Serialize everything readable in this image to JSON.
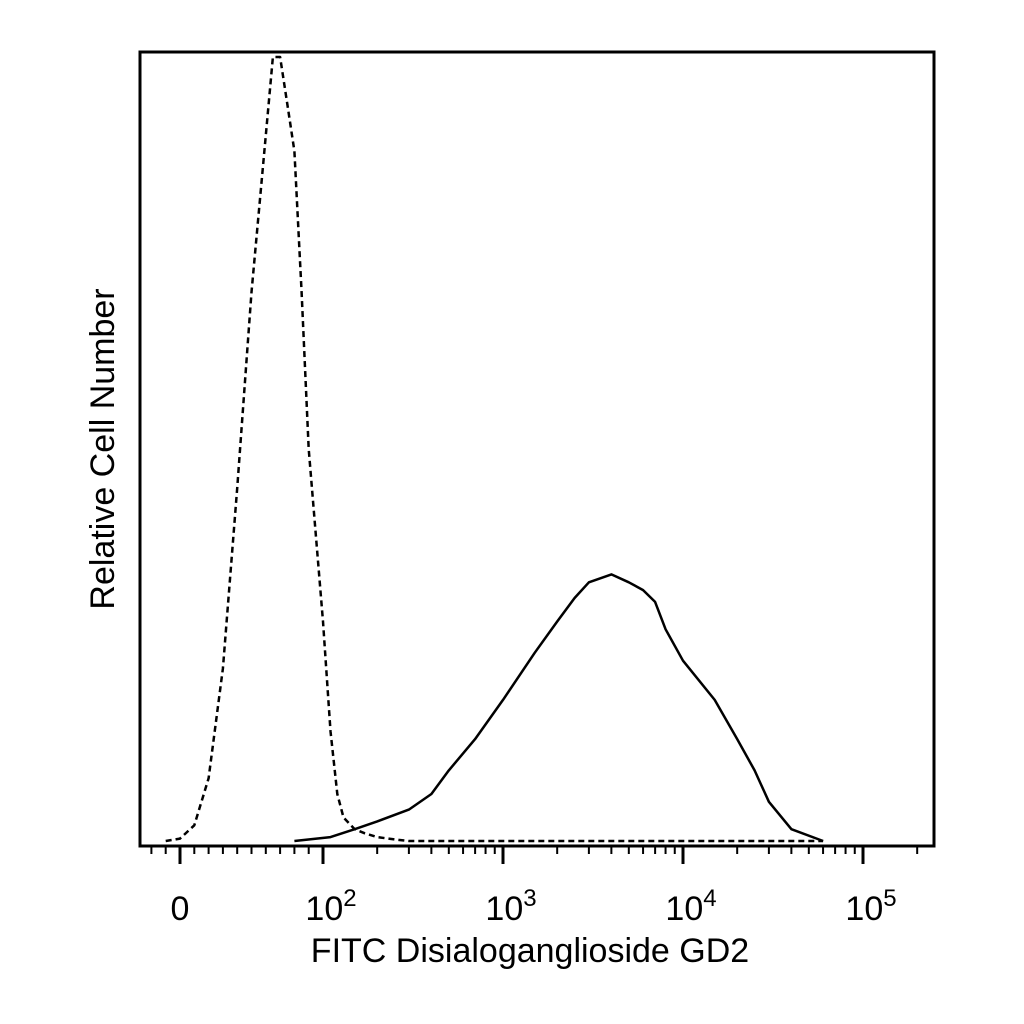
{
  "chart_data": {
    "type": "line",
    "title": "",
    "xlabel": "FITC Disialoganglioside GD2",
    "ylabel": "Relative Cell Number",
    "x_scale": "biexponential",
    "x_ticks": [
      {
        "value": 0,
        "base": "0",
        "exp": ""
      },
      {
        "value": 100,
        "base": "10",
        "exp": "2"
      },
      {
        "value": 1000,
        "base": "10",
        "exp": "3"
      },
      {
        "value": 10000,
        "base": "10",
        "exp": "4"
      },
      {
        "value": 100000,
        "base": "10",
        "exp": "5"
      }
    ],
    "ylim": [
      0,
      100
    ],
    "grid": false,
    "legend": "none",
    "series": [
      {
        "style": "dashed",
        "color": "#000000",
        "x": [
          -10,
          0,
          10,
          20,
          30,
          40,
          50,
          60,
          65,
          70,
          75,
          80,
          85,
          90,
          100,
          110,
          120,
          130,
          150,
          170,
          200,
          250,
          300,
          500,
          1000,
          5000,
          10000,
          30000,
          60000
        ],
        "y": [
          0,
          0.3,
          2,
          8,
          22,
          45,
          70,
          90,
          100,
          100,
          94,
          88,
          70,
          50,
          28,
          14,
          6,
          3,
          1.5,
          1,
          0.5,
          0.2,
          0,
          0,
          0,
          0,
          0,
          0,
          0
        ]
      },
      {
        "style": "solid",
        "color": "#000000",
        "x": [
          80,
          110,
          150,
          200,
          300,
          400,
          500,
          700,
          1000,
          1500,
          2000,
          2500,
          3000,
          4000,
          5000,
          6000,
          7000,
          8000,
          10000,
          15000,
          20000,
          25000,
          30000,
          40000,
          60000
        ],
        "y": [
          0,
          0.5,
          1.5,
          2.5,
          4,
          6,
          9,
          13,
          18,
          24,
          28,
          31,
          33,
          34,
          33,
          32,
          30.5,
          27,
          23,
          18,
          13,
          9,
          5,
          1.5,
          0
        ]
      }
    ]
  }
}
